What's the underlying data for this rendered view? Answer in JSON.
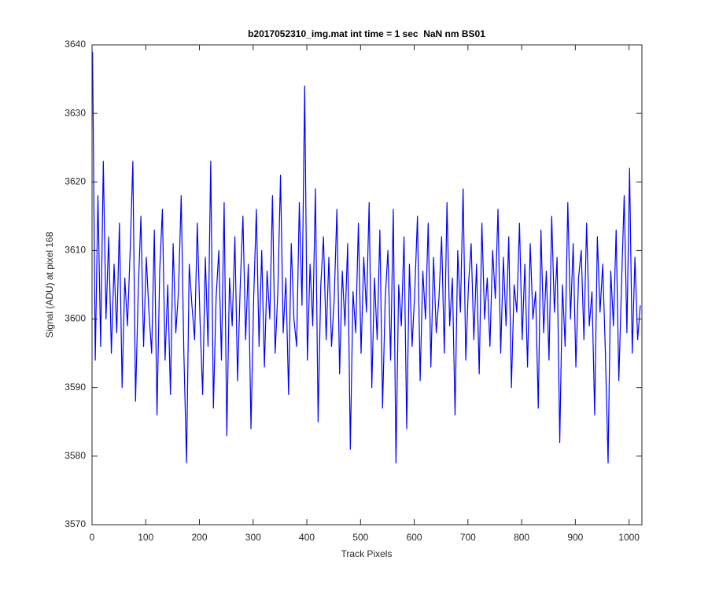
{
  "chart_data": {
    "type": "line",
    "title": "b2017052310_img.mat int time = 1 sec  NaN nm BS01",
    "x_label": "Track Pixels",
    "y_label": "Signal (ADU) at pixel 168",
    "xlim": [
      0,
      1024
    ],
    "ylim": [
      3570,
      3640
    ],
    "xticks": [
      0,
      100,
      200,
      300,
      400,
      500,
      600,
      700,
      800,
      900,
      1000
    ],
    "yticks": [
      3570,
      3580,
      3590,
      3600,
      3610,
      3620,
      3630,
      3640
    ],
    "grid": false,
    "series": [
      {
        "color": "#0000ff",
        "x": [
          1,
          6,
          11,
          16,
          21,
          26,
          31,
          36,
          41,
          46,
          51,
          56,
          61,
          66,
          71,
          76,
          81,
          86,
          91,
          96,
          101,
          106,
          111,
          116,
          121,
          126,
          131,
          136,
          141,
          146,
          151,
          156,
          161,
          166,
          171,
          176,
          181,
          186,
          191,
          196,
          201,
          206,
          211,
          216,
          221,
          226,
          231,
          236,
          241,
          246,
          251,
          256,
          261,
          266,
          271,
          276,
          281,
          286,
          291,
          296,
          301,
          306,
          311,
          316,
          321,
          326,
          331,
          336,
          341,
          346,
          351,
          356,
          361,
          366,
          371,
          376,
          381,
          386,
          391,
          396,
          401,
          406,
          411,
          416,
          421,
          426,
          431,
          436,
          441,
          446,
          451,
          456,
          461,
          466,
          471,
          476,
          481,
          486,
          491,
          496,
          501,
          506,
          511,
          516,
          521,
          526,
          531,
          536,
          541,
          546,
          551,
          556,
          561,
          566,
          571,
          576,
          581,
          586,
          591,
          596,
          601,
          606,
          611,
          616,
          621,
          626,
          631,
          636,
          641,
          646,
          651,
          656,
          661,
          666,
          671,
          676,
          681,
          686,
          691,
          696,
          701,
          706,
          711,
          716,
          721,
          726,
          731,
          736,
          741,
          746,
          751,
          756,
          761,
          766,
          771,
          776,
          781,
          786,
          791,
          796,
          801,
          806,
          811,
          816,
          821,
          826,
          831,
          836,
          841,
          846,
          851,
          856,
          861,
          866,
          871,
          876,
          881,
          886,
          891,
          896,
          901,
          906,
          911,
          916,
          921,
          926,
          931,
          936,
          941,
          946,
          951,
          956,
          961,
          966,
          971,
          976,
          981,
          986,
          991,
          996,
          1001,
          1006,
          1011,
          1016,
          1021
        ],
        "values": [
          3639,
          3594,
          3618,
          3596,
          3623,
          3600,
          3612,
          3595,
          3608,
          3598,
          3614,
          3590,
          3606,
          3599,
          3610,
          3623,
          3588,
          3604,
          3615,
          3596,
          3609,
          3601,
          3595,
          3613,
          3586,
          3607,
          3616,
          3594,
          3605,
          3589,
          3611,
          3598,
          3604,
          3618,
          3595,
          3579,
          3608,
          3602,
          3597,
          3614,
          3600,
          3589,
          3609,
          3596,
          3623,
          3587,
          3603,
          3610,
          3594,
          3617,
          3583,
          3606,
          3599,
          3612,
          3591,
          3605,
          3615,
          3597,
          3608,
          3584,
          3603,
          3616,
          3596,
          3610,
          3593,
          3607,
          3600,
          3618,
          3595,
          3604,
          3621,
          3598,
          3606,
          3589,
          3611,
          3600,
          3596,
          3617,
          3602,
          3634,
          3594,
          3608,
          3599,
          3619,
          3585,
          3605,
          3612,
          3597,
          3609,
          3596,
          3603,
          3616,
          3592,
          3607,
          3599,
          3611,
          3581,
          3604,
          3598,
          3614,
          3595,
          3609,
          3601,
          3617,
          3590,
          3606,
          3597,
          3613,
          3587,
          3603,
          3610,
          3594,
          3616,
          3579,
          3605,
          3599,
          3612,
          3584,
          3608,
          3596,
          3604,
          3615,
          3591,
          3607,
          3600,
          3614,
          3593,
          3609,
          3598,
          3603,
          3612,
          3595,
          3617,
          3599,
          3606,
          3586,
          3610,
          3601,
          3619,
          3594,
          3605,
          3611,
          3597,
          3608,
          3592,
          3614,
          3600,
          3606,
          3596,
          3610,
          3603,
          3616,
          3595,
          3609,
          3599,
          3612,
          3590,
          3605,
          3601,
          3614,
          3597,
          3608,
          3593,
          3611,
          3600,
          3604,
          3587,
          3613,
          3598,
          3607,
          3594,
          3615,
          3601,
          3609,
          3582,
          3605,
          3596,
          3617,
          3600,
          3611,
          3593,
          3606,
          3610,
          3597,
          3614,
          3599,
          3604,
          3586,
          3612,
          3601,
          3608,
          3595,
          3579,
          3607,
          3599,
          3613,
          3591,
          3605,
          3618,
          3598,
          3622,
          3595,
          3609,
          3597,
          3602
        ]
      }
    ]
  }
}
